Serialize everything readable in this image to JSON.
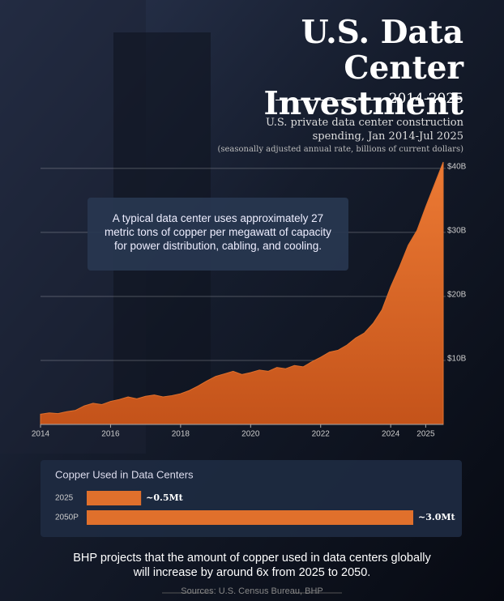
{
  "header": {
    "title": "U.S. Data Center Investment",
    "period": "2014-2025",
    "subtitle": "U.S. private data center construction spending, Jan 2014-Jul 2025",
    "note": "(seasonally adjusted annual rate, billions of current dollars)"
  },
  "chart_data": [
    {
      "type": "area",
      "annotation": "A typical data center uses approximately 27 metric tons of copper per megawatt of capacity for power distribution, cabling, and cooling.",
      "x": [
        2014,
        2014.25,
        2014.5,
        2014.75,
        2015,
        2015.25,
        2015.5,
        2015.75,
        2016,
        2016.25,
        2016.5,
        2016.75,
        2017,
        2017.25,
        2017.5,
        2017.75,
        2018,
        2018.25,
        2018.5,
        2018.75,
        2019,
        2019.25,
        2019.5,
        2019.75,
        2020,
        2020.25,
        2020.5,
        2020.75,
        2021,
        2021.25,
        2021.5,
        2021.75,
        2022,
        2022.25,
        2022.5,
        2022.75,
        2023,
        2023.25,
        2023.5,
        2023.75,
        2024,
        2024.25,
        2024.5,
        2024.75,
        2025,
        2025.25,
        2025.5
      ],
      "values": [
        1.6,
        1.8,
        1.7,
        2.0,
        2.2,
        2.9,
        3.3,
        3.1,
        3.6,
        3.9,
        4.3,
        4.0,
        4.4,
        4.6,
        4.3,
        4.5,
        4.8,
        5.3,
        6.0,
        6.8,
        7.5,
        7.9,
        8.3,
        7.8,
        8.1,
        8.5,
        8.3,
        8.9,
        8.7,
        9.2,
        9.0,
        9.8,
        10.5,
        11.3,
        11.6,
        12.4,
        13.5,
        14.3,
        15.8,
        17.9,
        21.5,
        24.6,
        28.0,
        30.3,
        34.0,
        37.5,
        41.0
      ],
      "color": "#e0702c",
      "xlim": [
        2014,
        2025.5
      ],
      "xticks": [
        2014,
        2016,
        2018,
        2020,
        2022,
        2024,
        2025
      ],
      "ylim": [
        0,
        41
      ],
      "yticks": [
        {
          "value": 10,
          "label": "$10B"
        },
        {
          "value": 20,
          "label": "$20B"
        },
        {
          "value": 30,
          "label": "$30B"
        },
        {
          "value": 40,
          "label": "$40B"
        }
      ],
      "grid": true
    },
    {
      "type": "hbar",
      "title": "Copper Used in Data Centers",
      "categories": [
        "2025",
        "2050P"
      ],
      "values": [
        0.5,
        3.0
      ],
      "value_labels": [
        "~0.5Mt",
        "~3.0Mt"
      ],
      "color": "#e0702c"
    }
  ],
  "footer": {
    "text": "BHP projects that the amount of copper used in data centers globally will increase by around 6x from 2025 to 2050.",
    "source": "Sources: U.S. Census Bureau, BHP"
  }
}
